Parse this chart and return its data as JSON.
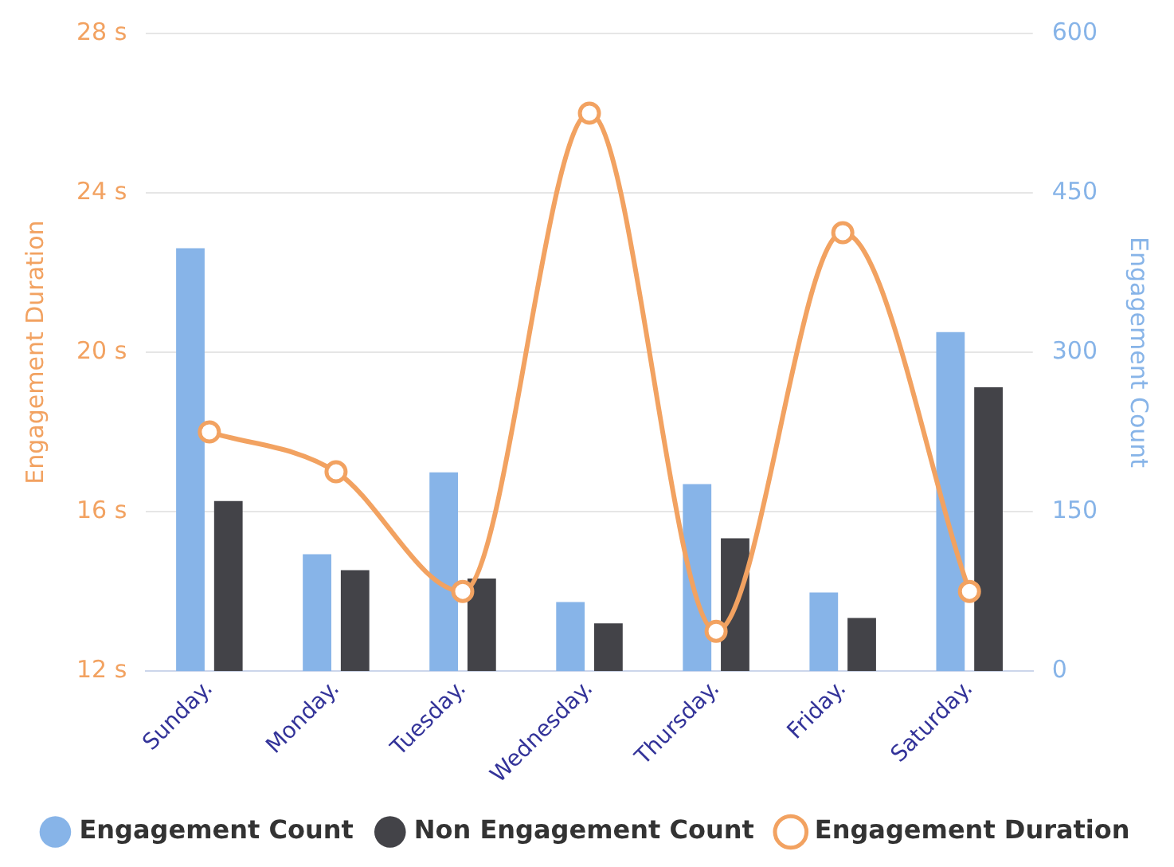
{
  "chart_data": {
    "type": "bar",
    "categories": [
      "Sunday.",
      "Monday.",
      "Tuesday.",
      "Wednesday.",
      "Thursday.",
      "Friday.",
      "Saturday."
    ],
    "series": [
      {
        "name": "Engagement Count",
        "axis": "y2",
        "color": "#87b4e8",
        "values": [
          398,
          110,
          187,
          65,
          176,
          74,
          319
        ]
      },
      {
        "name": "Non Engagement Count",
        "axis": "y2",
        "color": "#434348",
        "values": [
          160,
          95,
          87,
          45,
          125,
          50,
          267
        ]
      },
      {
        "name": "Engagement Duration",
        "type": "line",
        "axis": "y",
        "color": "#f2a261",
        "marker": "circle",
        "values": [
          18,
          17,
          14,
          26,
          13,
          23,
          14
        ]
      }
    ],
    "ylabel": "Engagement Duration",
    "y2label": "Engagement Count",
    "ylim": [
      12,
      28
    ],
    "yticks": [
      {
        "value": 12,
        "label": "12 s"
      },
      {
        "value": 16,
        "label": "16 s"
      },
      {
        "value": 20,
        "label": "20 s"
      },
      {
        "value": 24,
        "label": "24 s"
      },
      {
        "value": 28,
        "label": "28 s"
      }
    ],
    "y2lim": [
      0,
      600
    ],
    "y2ticks": [
      0,
      150,
      300,
      450,
      600
    ],
    "grid": "y",
    "legend": "bottom"
  }
}
